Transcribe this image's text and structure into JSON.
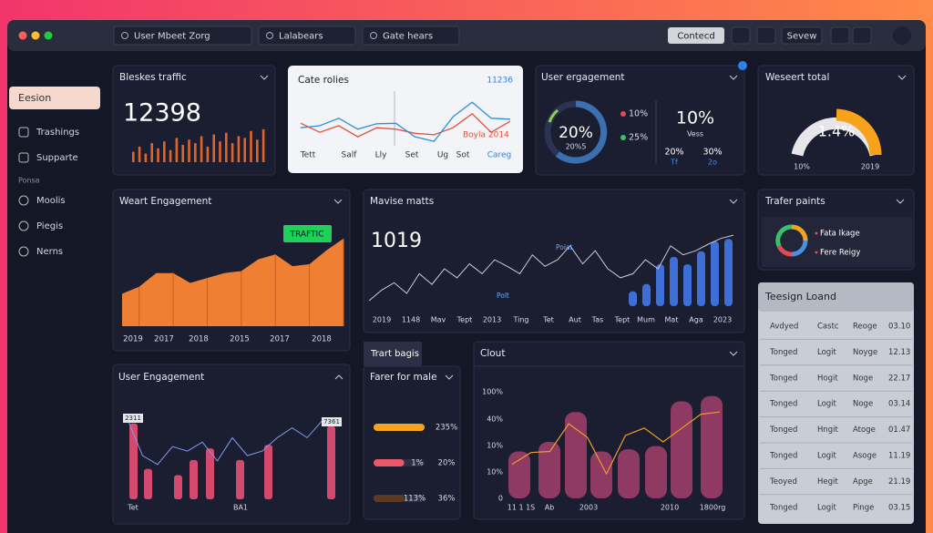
{
  "window": {
    "search": [
      "User Mbeet Zorg",
      "Lalabears",
      "Gate hears"
    ],
    "buttons": [
      "Contecd",
      "Sevew"
    ]
  },
  "sidebar": {
    "items": [
      "Eesion",
      "Trashings",
      "Supparte"
    ],
    "section": "Ponsa",
    "items2": [
      "Moolis",
      "Piegis",
      "Nerns"
    ]
  },
  "traffic": {
    "title": "Bleskes traffic",
    "value": "12398",
    "bars": [
      30,
      45,
      25,
      55,
      40,
      60,
      35,
      70,
      50,
      65,
      55,
      75,
      45,
      80,
      60,
      85,
      55,
      75,
      70,
      90,
      65,
      95
    ]
  },
  "rolies": {
    "title": "Cate rolies",
    "value": "11236",
    "note": "Boyla 2014",
    "xlabels": [
      "Tett",
      "Salf",
      "Lly",
      "Set",
      "Ug",
      "Sot",
      "Careg"
    ],
    "red": [
      45,
      27,
      40,
      18,
      36,
      33,
      25,
      22,
      36,
      64,
      27,
      49
    ],
    "blue": [
      36,
      40,
      55,
      33,
      44,
      45,
      18,
      9,
      58,
      87,
      55,
      53
    ]
  },
  "engagement": {
    "title": "User ergagement",
    "center": "20%",
    "sub": "20%5",
    "legend": [
      "10%",
      "25%"
    ],
    "big": "10%",
    "big_sub": "Vess",
    "stats": [
      "20%",
      "30%"
    ],
    "stats_sub": [
      "Tf",
      "2o"
    ]
  },
  "total": {
    "title": "Weseert total",
    "value": "1.4%",
    "min": "10%",
    "max": "2019"
  },
  "weart": {
    "title": "Weart Engagement",
    "badge": "TRAFTIC",
    "xlabels": [
      "2019",
      "2017",
      "2018",
      "2015",
      "2017",
      "2018"
    ],
    "values": [
      33,
      40,
      54,
      54,
      44,
      49,
      54,
      56,
      68,
      73,
      61,
      63,
      77,
      89
    ]
  },
  "mavise": {
    "title": "Mavise matts",
    "value": "1019",
    "notes": [
      "Poiat",
      "Polt"
    ],
    "xlabels": [
      "2019",
      "1148",
      "Mav",
      "Tept",
      "2013",
      "Ting",
      "Tet",
      "Aut",
      "Tas",
      "Tept",
      "Mum",
      "Mat",
      "Aga",
      "2023"
    ],
    "line": [
      11,
      24,
      33,
      20,
      44,
      31,
      50,
      39,
      56,
      44,
      61,
      53,
      44,
      67,
      53,
      61,
      78,
      56,
      72,
      50,
      39,
      44,
      61,
      50,
      78,
      67,
      72,
      80,
      87,
      91
    ],
    "bars": [
      18,
      27,
      51,
      60,
      51,
      67,
      79,
      82
    ]
  },
  "trafer": {
    "title": "Trafer paints",
    "legend": [
      "Fata Ikage",
      "Fere Reigy"
    ]
  },
  "table": {
    "title": "Teesign Loand",
    "rows": [
      [
        "Avdyed",
        "Castc",
        "Reoge",
        "03.10"
      ],
      [
        "Tonged",
        "Logit",
        "Noyge",
        "12.13"
      ],
      [
        "Tonged",
        "Hogit",
        "Noge",
        "22.17"
      ],
      [
        "Tonged",
        "Logit",
        "Noge",
        "03.14"
      ],
      [
        "Tonged",
        "Hngit",
        "Atoge",
        "01.47"
      ],
      [
        "Tonged",
        "Logit",
        "Asoge",
        "11.19"
      ],
      [
        "Teoyed",
        "Hegit",
        "Apge",
        "21.19"
      ],
      [
        "Tonged",
        "Logit",
        "Pinge",
        "03.15"
      ]
    ]
  },
  "user_engagement": {
    "title": "User Engagement",
    "badges": [
      "2311",
      "7361"
    ],
    "xlabels": [
      "Tet",
      "BA1"
    ],
    "bars": [
      85,
      34,
      27,
      44,
      57,
      44,
      61,
      82
    ],
    "line": [
      90,
      49,
      39,
      59,
      54,
      64,
      43,
      69,
      49,
      54,
      69,
      80,
      69,
      88,
      85
    ]
  },
  "trart": {
    "tab": "Trart bagis",
    "title": "Farer for male",
    "bars": [
      100,
      60,
      60
    ],
    "labels": [
      [
        "235%"
      ],
      [
        "1%",
        "20%"
      ],
      [
        "113%",
        "36%"
      ]
    ]
  },
  "clout": {
    "title": "Clout",
    "ylabels": [
      "100%",
      "40%",
      "10%",
      "10%",
      "0"
    ],
    "xlabels": [
      "11 1 1S",
      "Ab",
      "2003",
      "2010",
      "1800rg"
    ],
    "bars": [
      44,
      53,
      81,
      44,
      46,
      49,
      91,
      96
    ],
    "line": [
      32,
      43,
      44,
      70,
      57,
      23,
      59,
      66,
      53,
      66,
      79,
      81
    ]
  }
}
